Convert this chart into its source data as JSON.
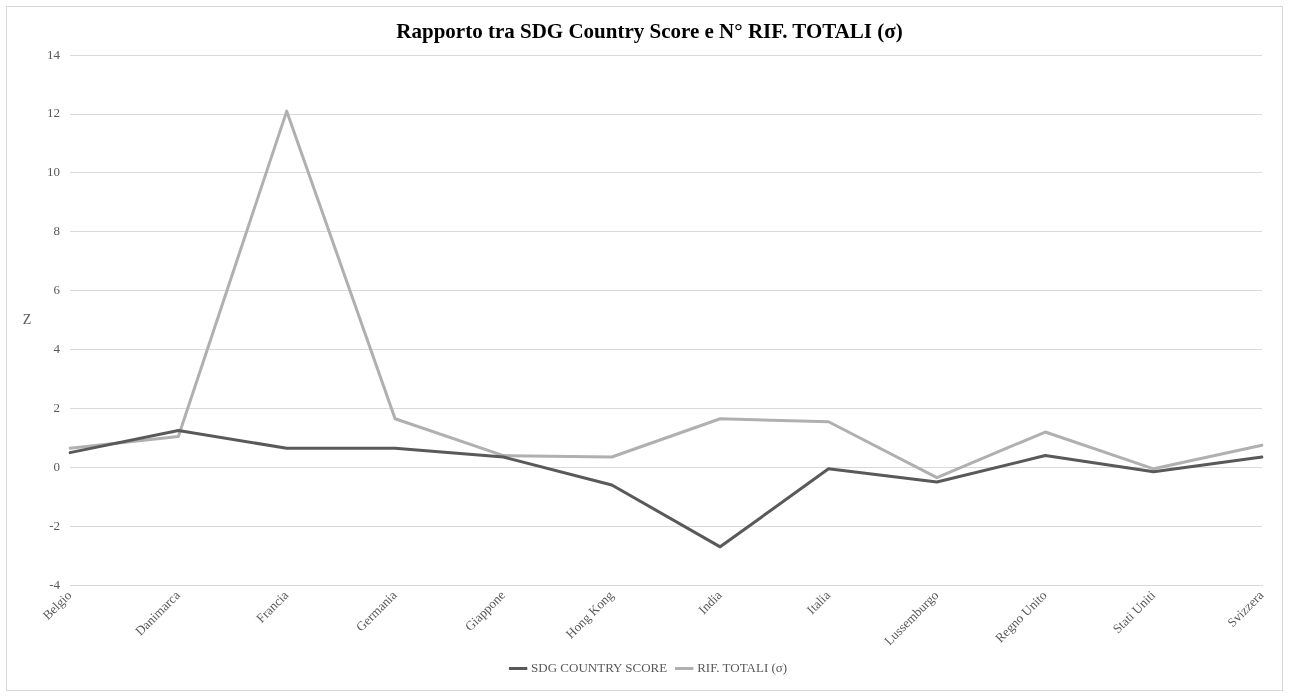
{
  "chart_data": {
    "type": "line",
    "title": "Rapporto tra SDG Country Score e N° RIF. TOTALI (σ)",
    "ylabel": "Z",
    "categories": [
      "Belgio",
      "Danimarca",
      "Francia",
      "Germania",
      "Giappone",
      "Hong Kong",
      "India",
      "Italia",
      "Lussemburgo",
      "Regno Unito",
      "Stati Uniti",
      "Svizzera"
    ],
    "series": [
      {
        "name": "SDG COUNTRY SCORE",
        "color": "#595959",
        "values": [
          0.5,
          1.25,
          0.65,
          0.65,
          0.35,
          -0.6,
          -2.7,
          -0.05,
          -0.5,
          0.4,
          -0.15,
          0.35
        ]
      },
      {
        "name": "RIF. TOTALI (σ)",
        "color": "#b0b0b0",
        "values": [
          0.65,
          1.05,
          12.1,
          1.65,
          0.4,
          0.35,
          1.65,
          1.55,
          -0.35,
          1.2,
          -0.05,
          0.75
        ]
      }
    ],
    "ylim": [
      -4,
      14
    ],
    "yticks": [
      -4,
      -2,
      0,
      2,
      4,
      6,
      8,
      10,
      12,
      14
    ],
    "grid": "y",
    "legend": "bottom",
    "marker": "none",
    "line_style": "solid"
  }
}
